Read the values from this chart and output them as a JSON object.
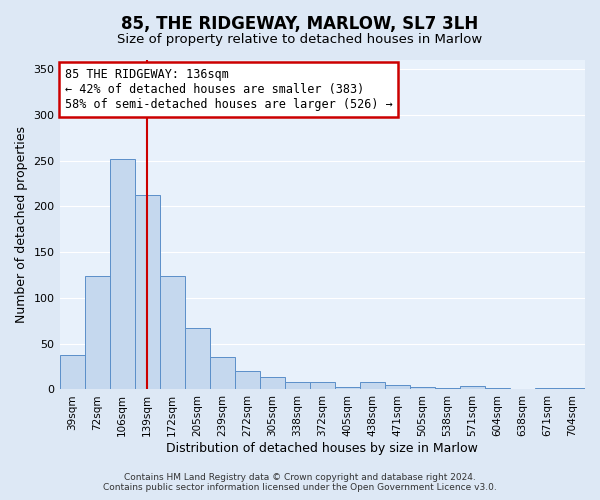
{
  "title": "85, THE RIDGEWAY, MARLOW, SL7 3LH",
  "subtitle": "Size of property relative to detached houses in Marlow",
  "xlabel": "Distribution of detached houses by size in Marlow",
  "ylabel": "Number of detached properties",
  "bar_labels": [
    "39sqm",
    "72sqm",
    "106sqm",
    "139sqm",
    "172sqm",
    "205sqm",
    "239sqm",
    "272sqm",
    "305sqm",
    "338sqm",
    "372sqm",
    "405sqm",
    "438sqm",
    "471sqm",
    "505sqm",
    "538sqm",
    "571sqm",
    "604sqm",
    "638sqm",
    "671sqm",
    "704sqm"
  ],
  "bar_values": [
    38,
    124,
    252,
    212,
    124,
    67,
    35,
    20,
    14,
    8,
    8,
    3,
    8,
    5,
    3,
    2,
    4,
    2,
    1,
    2,
    2
  ],
  "bar_color": "#c5d8ee",
  "bar_edge_color": "#5b8fc9",
  "vline_x": 3,
  "vline_color": "#cc0000",
  "annotation_title": "85 THE RIDGEWAY: 136sqm",
  "annotation_line1": "← 42% of detached houses are smaller (383)",
  "annotation_line2": "58% of semi-detached houses are larger (526) →",
  "annotation_box_color": "#cc0000",
  "ylim": [
    0,
    360
  ],
  "yticks": [
    0,
    50,
    100,
    150,
    200,
    250,
    300,
    350
  ],
  "footer1": "Contains HM Land Registry data © Crown copyright and database right 2024.",
  "footer2": "Contains public sector information licensed under the Open Government Licence v3.0.",
  "bg_color": "#dde8f5",
  "plot_bg_color": "#e8f1fb",
  "grid_color": "#ffffff"
}
